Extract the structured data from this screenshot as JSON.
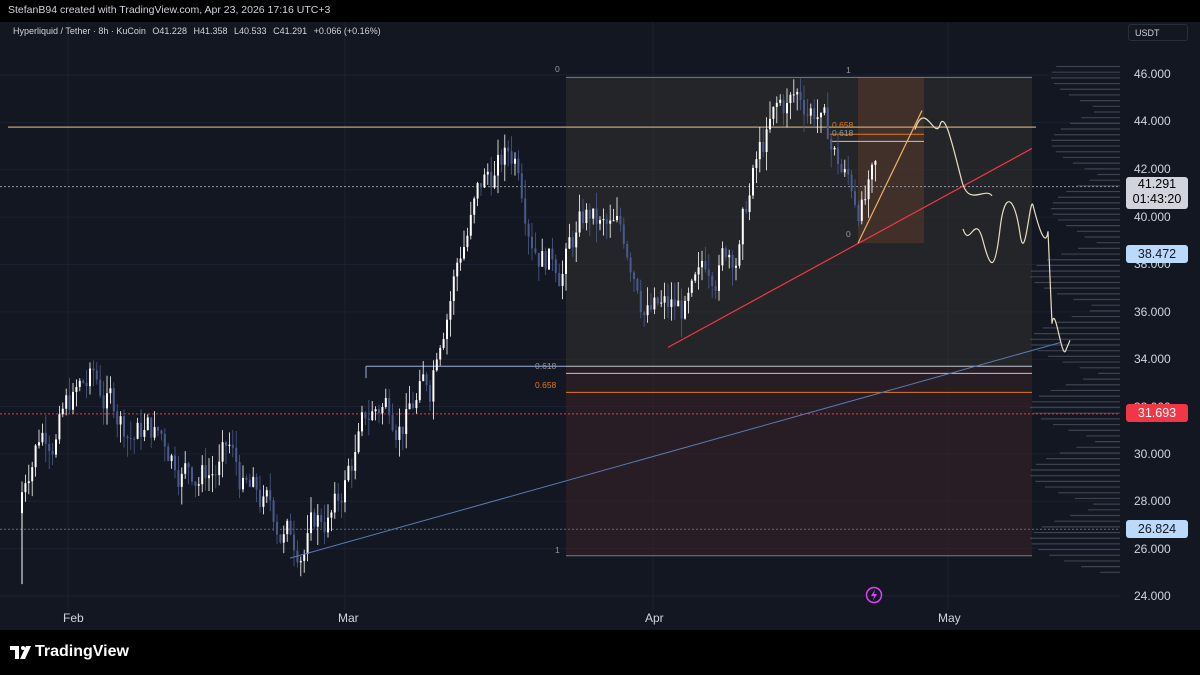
{
  "header": {
    "created_by": "StefanB94 created with TradingView.com, Apr 23, 2026 17:16 UTC+3"
  },
  "legend": {
    "symbol": "Hyperliquid / Tether · 8h · KuCoin",
    "open": "O41.228",
    "high": "H41.358",
    "low": "L40.533",
    "close": "C41.291",
    "change": "+0.066 (+0.16%)"
  },
  "currency": "USDT",
  "price_axis": {
    "ticks": [
      "46.000",
      "44.000",
      "42.000",
      "40.000",
      "38.000",
      "36.000",
      "34.000",
      "32.000",
      "30.000",
      "28.000",
      "26.000",
      "24.000"
    ],
    "current_price": "41.291",
    "countdown": "01:43:20",
    "badge_blue_1": "38.472",
    "badge_red": "31.693",
    "badge_blue_2": "26.824"
  },
  "time_axis": [
    "Feb",
    "Mar",
    "Apr",
    "May"
  ],
  "fib_labels": {
    "left_top": "0",
    "left_mid_618": "0.618",
    "left_mid_658": "0.658",
    "left_bottom": "1",
    "right_top": "1",
    "right_658": "0.658",
    "right_618": "0.618",
    "right_bottom": "0"
  },
  "colors": {
    "background": "#131722",
    "candle_up": "#ffffff",
    "candle_down": "#4a5a8c",
    "resistance": "#c8a26e",
    "trendline_red": "#f23645",
    "trendline_blue": "#5b7bb0",
    "fib_orange": "#e07a1f",
    "badge_blue": "#bbd9fb",
    "badge_red": "#f23645"
  },
  "footer": {
    "brand": "TradingView"
  }
}
